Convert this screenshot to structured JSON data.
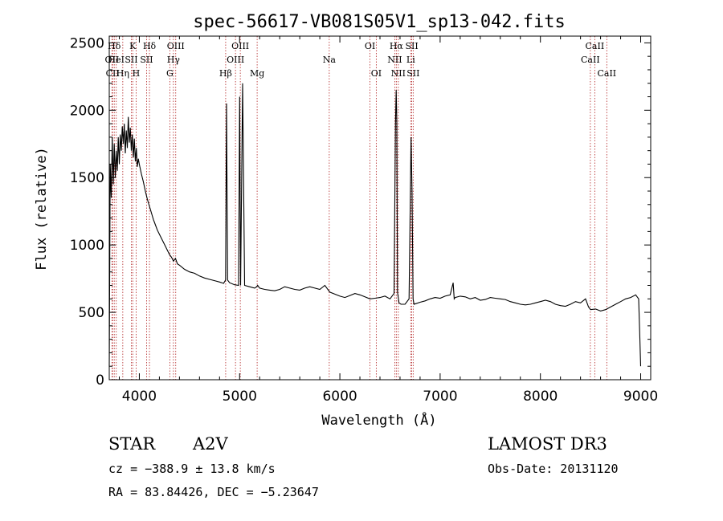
{
  "info": {
    "object_class": "STAR",
    "subclass": "A2V",
    "redshift_line": "cz = −388.9 ± 13.8 km/s",
    "coords_line": "RA =  83.84426, DEC =  −5.23647",
    "survey": "LAMOST DR3",
    "obs_date": "Obs-Date: 20131120"
  },
  "chart_data": {
    "type": "line",
    "title": "spec-56617-VB081S05V1_sp13-042.fits",
    "xlabel": "Wavelength (Å)",
    "ylabel": "Flux (relative)",
    "xlim": [
      3700,
      9100
    ],
    "ylim": [
      0,
      2550
    ],
    "xticks": [
      4000,
      5000,
      6000,
      7000,
      8000,
      9000
    ],
    "yticks": [
      0,
      500,
      1000,
      1500,
      2000,
      2500
    ],
    "grid": false,
    "line_color": "#000000",
    "marker_color": "#b22222",
    "series": [
      {
        "x": [
          3700,
          3710,
          3720,
          3730,
          3740,
          3750,
          3760,
          3770,
          3780,
          3790,
          3800,
          3810,
          3820,
          3830,
          3840,
          3850,
          3860,
          3870,
          3880,
          3890,
          3900,
          3910,
          3920,
          3930,
          3940,
          3950,
          3960,
          3970,
          3980,
          3990,
          4000,
          4020,
          4040,
          4060,
          4080,
          4100,
          4120,
          4140,
          4160,
          4180,
          4200,
          4220,
          4240,
          4260,
          4280,
          4300,
          4320,
          4340,
          4360,
          4380,
          4400,
          4450,
          4500,
          4550,
          4600,
          4650,
          4700,
          4750,
          4800,
          4840,
          4860,
          4870,
          4880,
          4900,
          4950,
          4990,
          5000,
          5010,
          5030,
          5050,
          5100,
          5150,
          5170,
          5180,
          5200,
          5250,
          5300,
          5350,
          5400,
          5450,
          5500,
          5550,
          5600,
          5650,
          5700,
          5750,
          5800,
          5850,
          5900,
          5950,
          6000,
          6050,
          6100,
          6150,
          6200,
          6250,
          6300,
          6350,
          6400,
          6450,
          6500,
          6540,
          6555,
          6562,
          6568,
          6575,
          6590,
          6610,
          6650,
          6690,
          6710,
          6720,
          6730,
          6740,
          6760,
          6800,
          6850,
          6900,
          6950,
          7000,
          7050,
          7100,
          7130,
          7140,
          7150,
          7200,
          7250,
          7300,
          7350,
          7400,
          7450,
          7500,
          7550,
          7600,
          7650,
          7700,
          7750,
          7800,
          7850,
          7900,
          7950,
          8000,
          8050,
          8100,
          8150,
          8200,
          8250,
          8300,
          8350,
          8400,
          8450,
          8480,
          8490,
          8500,
          8550,
          8600,
          8650,
          8700,
          8750,
          8800,
          8850,
          8900,
          8950,
          8980,
          8990,
          9000
        ],
        "y": [
          100,
          1600,
          1350,
          1800,
          1450,
          1750,
          1500,
          1700,
          1550,
          1800,
          1600,
          1820,
          1700,
          1880,
          1750,
          1900,
          1680,
          1850,
          1720,
          1950,
          1760,
          1870,
          1700,
          1820,
          1650,
          1790,
          1620,
          1720,
          1580,
          1640,
          1600,
          1530,
          1470,
          1400,
          1340,
          1290,
          1240,
          1190,
          1150,
          1110,
          1080,
          1050,
          1020,
          990,
          960,
          930,
          910,
          880,
          900,
          860,
          850,
          820,
          800,
          790,
          770,
          755,
          745,
          735,
          725,
          715,
          740,
          2050,
          740,
          720,
          705,
          700,
          2100,
          700,
          2200,
          700,
          690,
          680,
          690,
          700,
          680,
          670,
          665,
          660,
          670,
          690,
          680,
          670,
          665,
          680,
          690,
          680,
          670,
          700,
          650,
          635,
          620,
          610,
          625,
          640,
          630,
          615,
          600,
          605,
          610,
          620,
          600,
          640,
          1900,
          2150,
          1900,
          650,
          570,
          560,
          560,
          600,
          1800,
          1400,
          600,
          560,
          565,
          575,
          585,
          600,
          610,
          605,
          620,
          630,
          720,
          600,
          610,
          620,
          615,
          600,
          610,
          590,
          595,
          610,
          605,
          600,
          595,
          580,
          570,
          560,
          555,
          560,
          570,
          580,
          590,
          580,
          560,
          550,
          545,
          560,
          580,
          570,
          600,
          540,
          530,
          520,
          525,
          510,
          520,
          540,
          560,
          580,
          600,
          610,
          630,
          600,
          350,
          100
        ]
      }
    ],
    "spectral_lines": [
      {
        "label": "Hδ",
        "x": 3750,
        "row": 1
      },
      {
        "label": "OII",
        "x": 3727,
        "row": 2
      },
      {
        "label": "CII",
        "x": 3733,
        "row": 3
      },
      {
        "label": "HeI",
        "x": 3770,
        "row": 2
      },
      {
        "label": "Hη",
        "x": 3835,
        "row": 3
      },
      {
        "label": "K",
        "x": 3934,
        "row": 1
      },
      {
        "label": "SII",
        "x": 3920,
        "row": 2
      },
      {
        "label": "H",
        "x": 3968,
        "row": 3
      },
      {
        "label": "Hδ",
        "x": 4101,
        "row": 1
      },
      {
        "label": "SII",
        "x": 4072,
        "row": 2
      },
      {
        "label": "OIII",
        "x": 4363,
        "row": 1
      },
      {
        "label": "Hγ",
        "x": 4340,
        "row": 2
      },
      {
        "label": "G",
        "x": 4304,
        "row": 3
      },
      {
        "label": "Hβ",
        "x": 4861,
        "row": 3
      },
      {
        "label": "OIII",
        "x": 5007,
        "row": 1
      },
      {
        "label": "OIII",
        "x": 4959,
        "row": 2
      },
      {
        "label": "Mg",
        "x": 5175,
        "row": 3
      },
      {
        "label": "Na",
        "x": 5894,
        "row": 2
      },
      {
        "label": "OI",
        "x": 6300,
        "row": 1
      },
      {
        "label": "OI",
        "x": 6363,
        "row": 3
      },
      {
        "label": "Hα",
        "x": 6563,
        "row": 1
      },
      {
        "label": "NII",
        "x": 6548,
        "row": 2
      },
      {
        "label": "NII",
        "x": 6583,
        "row": 3
      },
      {
        "label": "SII",
        "x": 6717,
        "row": 1
      },
      {
        "label": "Li",
        "x": 6707,
        "row": 2
      },
      {
        "label": "SII",
        "x": 6731,
        "row": 3
      },
      {
        "label": "CaII",
        "x": 8498,
        "row": 2
      },
      {
        "label": "CaII",
        "x": 8542,
        "row": 1
      },
      {
        "label": "CaII",
        "x": 8662,
        "row": 3
      }
    ]
  }
}
